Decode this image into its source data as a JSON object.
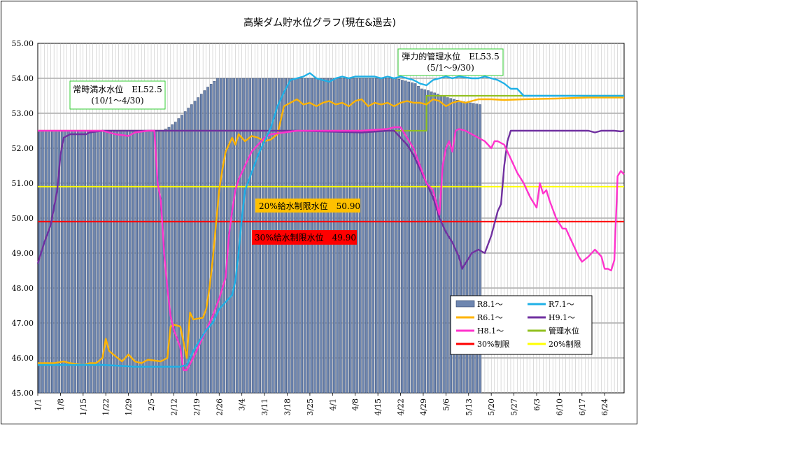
{
  "chart_data": {
    "type": "line",
    "title": "高柴ダム貯水位グラフ(現在&過去)",
    "ylim": [
      45.0,
      55.0
    ],
    "y_ticks": [
      "45.00",
      "46.00",
      "47.00",
      "48.00",
      "49.00",
      "50.00",
      "51.00",
      "52.00",
      "53.00",
      "54.00",
      "55.00"
    ],
    "x_domain_days": [
      0,
      181
    ],
    "x_tick_labels": [
      "1/1",
      "1/8",
      "1/15",
      "1/22",
      "1/29",
      "2/5",
      "2/12",
      "2/19",
      "2/26",
      "3/4",
      "3/11",
      "3/18",
      "3/25",
      "4/1",
      "4/8",
      "4/15",
      "4/22",
      "4/29",
      "5/6",
      "5/13",
      "5/20",
      "5/27",
      "6/3",
      "6/10",
      "6/17",
      "6/24"
    ],
    "grid": true,
    "legend_position": "bottom-right",
    "colors": {
      "bars": "#6e86b0",
      "r7": "#1fb0e6",
      "r6": "#ffb300",
      "h9": "#7030a0",
      "h8": "#ff33cc",
      "kanri": "#92c020",
      "limit30": "#ff0000",
      "limit20": "#ffff00"
    },
    "annotations": {
      "normal_full_line1": "常時満水水位　EL52.5",
      "normal_full_line2": "(10/1～4/30)",
      "elastic_line1": "弾力的管理水位　EL53.5",
      "elastic_line2": "(5/1～9/30)",
      "limit20_label": "20%給水制限水位　50.90",
      "limit30_label": "30%給水制限水位　49.90"
    },
    "series": [
      {
        "name": "R8.1～",
        "kind": "bar",
        "points": [
          [
            0,
            52.5
          ],
          [
            10,
            52.5
          ],
          [
            20,
            52.5
          ],
          [
            30,
            52.5
          ],
          [
            38,
            52.5
          ],
          [
            40,
            52.6
          ],
          [
            42,
            52.75
          ],
          [
            44,
            52.95
          ],
          [
            46,
            53.15
          ],
          [
            48,
            53.35
          ],
          [
            50,
            53.55
          ],
          [
            52,
            53.75
          ],
          [
            55,
            54.0
          ],
          [
            100,
            54.0
          ],
          [
            110,
            54.0
          ],
          [
            112,
            53.95
          ],
          [
            116,
            53.85
          ],
          [
            118,
            53.7
          ],
          [
            120,
            53.65
          ],
          [
            123,
            53.55
          ],
          [
            126,
            53.45
          ],
          [
            128,
            53.4
          ],
          [
            130,
            53.35
          ],
          [
            136,
            53.25
          ]
        ]
      },
      {
        "name": "R7.1～",
        "kind": "line",
        "points": [
          [
            0,
            45.8
          ],
          [
            20,
            45.8
          ],
          [
            30,
            45.75
          ],
          [
            44,
            45.75
          ],
          [
            46,
            45.8
          ],
          [
            48,
            46.2
          ],
          [
            50,
            46.5
          ],
          [
            52,
            46.8
          ],
          [
            54,
            47.0
          ],
          [
            56,
            47.4
          ],
          [
            58,
            47.6
          ],
          [
            60,
            47.8
          ],
          [
            61,
            48.2
          ],
          [
            62,
            49.0
          ],
          [
            63,
            50.0
          ],
          [
            64,
            50.8
          ],
          [
            66,
            51.3
          ],
          [
            68,
            51.8
          ],
          [
            70,
            52.2
          ],
          [
            72,
            52.6
          ],
          [
            74,
            53.2
          ],
          [
            76,
            53.6
          ],
          [
            78,
            53.95
          ],
          [
            80,
            54.0
          ],
          [
            82,
            54.05
          ],
          [
            84,
            54.15
          ],
          [
            86,
            54.0
          ],
          [
            88,
            53.95
          ],
          [
            90,
            53.9
          ],
          [
            92,
            54.0
          ],
          [
            94,
            54.05
          ],
          [
            96,
            54.0
          ],
          [
            98,
            54.05
          ],
          [
            100,
            54.05
          ],
          [
            104,
            54.05
          ],
          [
            106,
            54.0
          ],
          [
            108,
            54.05
          ],
          [
            110,
            54.0
          ],
          [
            112,
            54.05
          ],
          [
            116,
            53.95
          ],
          [
            118,
            53.85
          ],
          [
            120,
            53.8
          ],
          [
            122,
            53.95
          ],
          [
            124,
            54.0
          ],
          [
            126,
            54.05
          ],
          [
            128,
            54.0
          ],
          [
            130,
            54.05
          ],
          [
            134,
            54.0
          ],
          [
            136,
            54.0
          ],
          [
            138,
            54.05
          ],
          [
            140,
            54.0
          ],
          [
            142,
            53.95
          ],
          [
            144,
            53.85
          ],
          [
            146,
            53.7
          ],
          [
            148,
            53.7
          ],
          [
            150,
            53.5
          ],
          [
            181,
            53.5
          ]
        ]
      },
      {
        "name": "R6.1～",
        "kind": "line",
        "points": [
          [
            0,
            45.85
          ],
          [
            5,
            45.85
          ],
          [
            8,
            45.9
          ],
          [
            10,
            45.85
          ],
          [
            14,
            45.8
          ],
          [
            16,
            45.85
          ],
          [
            18,
            45.85
          ],
          [
            20,
            46.0
          ],
          [
            21,
            46.55
          ],
          [
            22,
            46.2
          ],
          [
            24,
            46.05
          ],
          [
            26,
            45.9
          ],
          [
            28,
            46.1
          ],
          [
            30,
            45.9
          ],
          [
            32,
            45.85
          ],
          [
            34,
            45.95
          ],
          [
            38,
            45.9
          ],
          [
            40,
            46.0
          ],
          [
            41,
            46.9
          ],
          [
            42,
            46.95
          ],
          [
            44,
            46.9
          ],
          [
            46,
            46.0
          ],
          [
            47,
            47.3
          ],
          [
            48,
            47.1
          ],
          [
            51,
            47.15
          ],
          [
            52,
            47.4
          ],
          [
            53,
            48.0
          ],
          [
            54,
            48.8
          ],
          [
            55,
            49.8
          ],
          [
            56,
            50.8
          ],
          [
            57,
            51.4
          ],
          [
            58,
            51.9
          ],
          [
            60,
            52.3
          ],
          [
            61,
            52.1
          ],
          [
            62,
            52.4
          ],
          [
            64,
            52.2
          ],
          [
            66,
            52.35
          ],
          [
            68,
            52.3
          ],
          [
            70,
            52.2
          ],
          [
            72,
            52.25
          ],
          [
            74,
            52.4
          ],
          [
            76,
            53.2
          ],
          [
            78,
            53.3
          ],
          [
            80,
            53.4
          ],
          [
            82,
            53.25
          ],
          [
            84,
            53.3
          ],
          [
            86,
            53.2
          ],
          [
            88,
            53.3
          ],
          [
            90,
            53.35
          ],
          [
            92,
            53.25
          ],
          [
            94,
            53.3
          ],
          [
            96,
            53.2
          ],
          [
            98,
            53.35
          ],
          [
            100,
            53.4
          ],
          [
            102,
            53.2
          ],
          [
            104,
            53.3
          ],
          [
            106,
            53.25
          ],
          [
            108,
            53.3
          ],
          [
            110,
            53.2
          ],
          [
            112,
            53.3
          ],
          [
            114,
            53.35
          ],
          [
            116,
            53.3
          ],
          [
            118,
            53.3
          ],
          [
            120,
            53.25
          ],
          [
            122,
            53.4
          ],
          [
            124,
            53.35
          ],
          [
            126,
            53.2
          ],
          [
            128,
            53.3
          ],
          [
            130,
            53.35
          ],
          [
            132,
            53.3
          ],
          [
            134,
            53.35
          ],
          [
            136,
            53.4
          ],
          [
            140,
            53.4
          ],
          [
            144,
            53.38
          ],
          [
            150,
            53.4
          ],
          [
            160,
            53.42
          ],
          [
            170,
            53.45
          ],
          [
            181,
            53.45
          ]
        ]
      },
      {
        "name": "H9.1～",
        "kind": "line",
        "points": [
          [
            0,
            48.7
          ],
          [
            2,
            49.3
          ],
          [
            4,
            49.8
          ],
          [
            6,
            50.8
          ],
          [
            7,
            51.8
          ],
          [
            8,
            52.3
          ],
          [
            10,
            52.4
          ],
          [
            15,
            52.4
          ],
          [
            16,
            52.45
          ],
          [
            20,
            52.5
          ],
          [
            30,
            52.5
          ],
          [
            40,
            52.5
          ],
          [
            60,
            52.5
          ],
          [
            80,
            52.5
          ],
          [
            100,
            52.45
          ],
          [
            108,
            52.5
          ],
          [
            110,
            52.5
          ],
          [
            112,
            52.3
          ],
          [
            114,
            52.1
          ],
          [
            116,
            51.8
          ],
          [
            118,
            51.4
          ],
          [
            120,
            51.0
          ],
          [
            122,
            50.6
          ],
          [
            124,
            50.0
          ],
          [
            126,
            49.6
          ],
          [
            128,
            49.3
          ],
          [
            130,
            48.9
          ],
          [
            131,
            48.55
          ],
          [
            132,
            48.7
          ],
          [
            134,
            49.0
          ],
          [
            136,
            49.1
          ],
          [
            138,
            49.0
          ],
          [
            140,
            49.5
          ],
          [
            142,
            50.2
          ],
          [
            143,
            50.4
          ],
          [
            144,
            51.5
          ],
          [
            145,
            52.2
          ],
          [
            146,
            52.5
          ],
          [
            160,
            52.5
          ],
          [
            170,
            52.5
          ],
          [
            172,
            52.45
          ],
          [
            174,
            52.5
          ],
          [
            178,
            52.5
          ],
          [
            180,
            52.48
          ],
          [
            181,
            52.5
          ]
        ]
      },
      {
        "name": "H8.1～",
        "kind": "line",
        "points": [
          [
            0,
            52.5
          ],
          [
            10,
            52.5
          ],
          [
            20,
            52.5
          ],
          [
            24,
            52.4
          ],
          [
            28,
            52.35
          ],
          [
            30,
            52.45
          ],
          [
            34,
            52.5
          ],
          [
            36,
            52.5
          ],
          [
            37,
            51.0
          ],
          [
            38,
            50.5
          ],
          [
            39,
            49.0
          ],
          [
            40,
            48.0
          ],
          [
            41,
            47.2
          ],
          [
            42,
            46.8
          ],
          [
            44,
            46.3
          ],
          [
            45,
            45.65
          ],
          [
            46,
            45.65
          ],
          [
            48,
            46.0
          ],
          [
            50,
            46.4
          ],
          [
            52,
            46.8
          ],
          [
            54,
            47.2
          ],
          [
            56,
            47.7
          ],
          [
            58,
            48.3
          ],
          [
            59,
            49.5
          ],
          [
            60,
            50.2
          ],
          [
            61,
            50.8
          ],
          [
            62,
            51.1
          ],
          [
            64,
            51.5
          ],
          [
            66,
            51.9
          ],
          [
            68,
            52.1
          ],
          [
            70,
            52.3
          ],
          [
            72,
            52.4
          ],
          [
            76,
            52.45
          ],
          [
            80,
            52.5
          ],
          [
            90,
            52.5
          ],
          [
            100,
            52.5
          ],
          [
            108,
            52.55
          ],
          [
            110,
            52.6
          ],
          [
            112,
            52.6
          ],
          [
            114,
            52.3
          ],
          [
            116,
            52.0
          ],
          [
            118,
            51.5
          ],
          [
            120,
            51.0
          ],
          [
            122,
            50.8
          ],
          [
            124,
            50.1
          ],
          [
            125,
            51.5
          ],
          [
            126,
            52.0
          ],
          [
            127,
            52.2
          ],
          [
            128,
            51.9
          ],
          [
            129,
            52.5
          ],
          [
            130,
            52.55
          ],
          [
            132,
            52.5
          ],
          [
            134,
            52.4
          ],
          [
            136,
            52.3
          ],
          [
            138,
            52.2
          ],
          [
            140,
            52.0
          ],
          [
            141,
            52.2
          ],
          [
            142,
            52.2
          ],
          [
            144,
            52.1
          ],
          [
            146,
            51.7
          ],
          [
            148,
            51.3
          ],
          [
            150,
            51.0
          ],
          [
            152,
            50.6
          ],
          [
            154,
            50.3
          ],
          [
            155,
            51.0
          ],
          [
            156,
            50.7
          ],
          [
            157,
            50.8
          ],
          [
            158,
            50.5
          ],
          [
            160,
            50.0
          ],
          [
            162,
            49.7
          ],
          [
            163,
            49.7
          ],
          [
            165,
            49.3
          ],
          [
            167,
            48.9
          ],
          [
            168,
            48.75
          ],
          [
            170,
            48.9
          ],
          [
            172,
            49.1
          ],
          [
            174,
            48.9
          ],
          [
            175,
            48.55
          ],
          [
            176,
            48.55
          ],
          [
            177,
            48.5
          ],
          [
            178,
            48.8
          ],
          [
            179,
            51.2
          ],
          [
            180,
            51.35
          ],
          [
            181,
            51.25
          ]
        ]
      },
      {
        "name": "管理水位",
        "kind": "step",
        "points": [
          [
            0,
            52.5
          ],
          [
            120,
            52.5
          ],
          [
            120,
            53.5
          ],
          [
            181,
            53.5
          ]
        ]
      },
      {
        "name": "30%制限",
        "kind": "hline",
        "points": [
          [
            0,
            49.9
          ],
          [
            181,
            49.9
          ]
        ]
      },
      {
        "name": "20%制限",
        "kind": "hline",
        "points": [
          [
            0,
            50.9
          ],
          [
            181,
            50.9
          ]
        ]
      }
    ]
  }
}
